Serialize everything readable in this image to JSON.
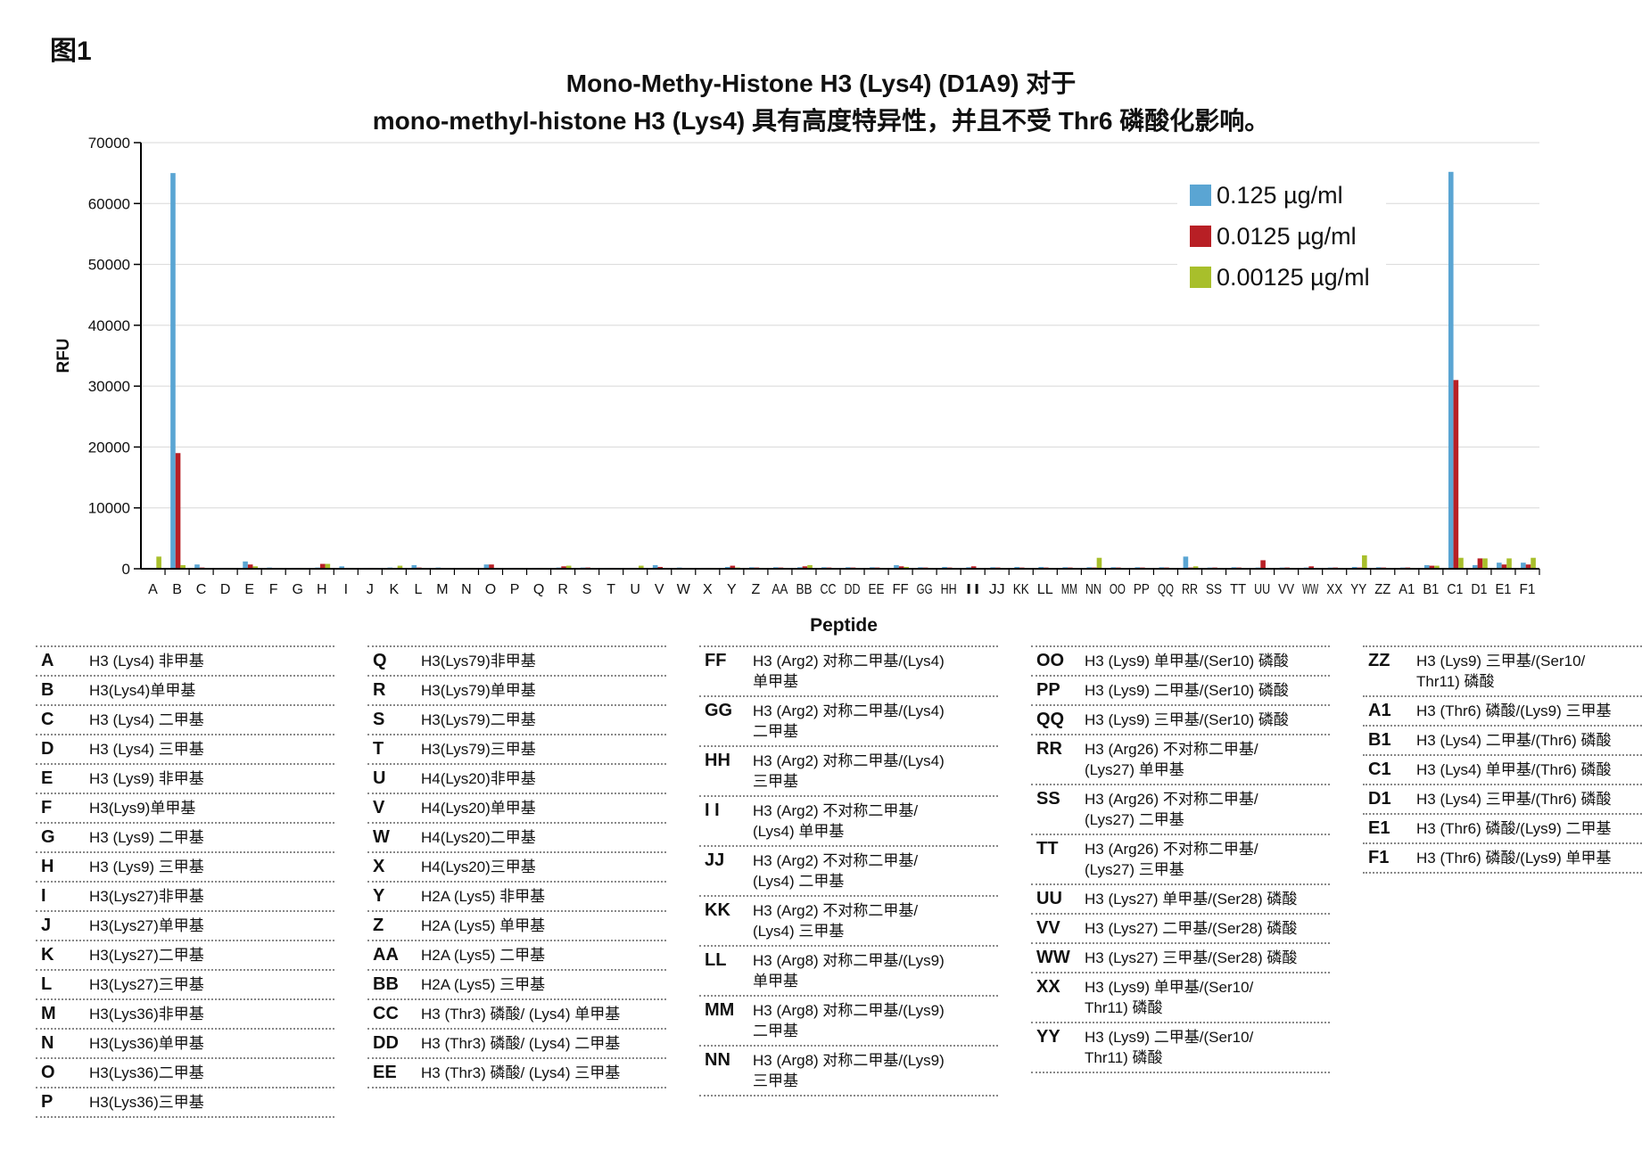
{
  "figure_label": "图1",
  "title_line1": "Mono-Methy-Histone H3 (Lys4) (D1A9) 对于",
  "title_line2": "mono-methyl-histone H3 (Lys4) 具有高度特异性，并且不受 Thr6 磷酸化影响。",
  "colors": {
    "s1": "#5aa5d3",
    "s2": "#b81f25",
    "s3": "#a8bf2b",
    "grid": "#d8d8d8",
    "axis": "#000000"
  },
  "chart_data": {
    "type": "bar",
    "xlabel": "Peptide",
    "ylabel": "RFU",
    "ylim": [
      0,
      70000
    ],
    "yticks": [
      "0",
      "10000",
      "20000",
      "30000",
      "40000",
      "50000",
      "60000",
      "70000"
    ],
    "grid": true,
    "legend_position": "top-right",
    "categories": [
      "A",
      "B",
      "C",
      "D",
      "E",
      "F",
      "G",
      "H",
      "I",
      "J",
      "K",
      "L",
      "M",
      "N",
      "O",
      "P",
      "Q",
      "R",
      "S",
      "T",
      "U",
      "V",
      "W",
      "X",
      "Y",
      "Z",
      "AA",
      "BB",
      "CC",
      "DD",
      "EE",
      "FF",
      "GG",
      "HH",
      "II",
      "JJ",
      "KK",
      "LL",
      "MM",
      "NN",
      "OO",
      "PP",
      "QQ",
      "RR",
      "SS",
      "TT",
      "UU",
      "VV",
      "WW",
      "XX",
      "YY",
      "ZZ",
      "A1",
      "B1",
      "C1",
      "D1",
      "E1",
      "F1"
    ],
    "series": [
      {
        "name": "0.125 µg/ml",
        "values": [
          100,
          65000,
          700,
          150,
          1200,
          200,
          150,
          200,
          400,
          150,
          200,
          600,
          200,
          150,
          700,
          150,
          150,
          200,
          200,
          150,
          150,
          600,
          200,
          150,
          300,
          250,
          250,
          250,
          250,
          250,
          250,
          600,
          250,
          300,
          250,
          250,
          300,
          300,
          250,
          250,
          250,
          250,
          250,
          2000,
          200,
          250,
          200,
          200,
          200,
          200,
          300,
          250,
          200,
          600,
          65200,
          600,
          1000,
          1000
        ]
      },
      {
        "name": "0.0125 µg/ml",
        "values": [
          100,
          19000,
          200,
          150,
          700,
          150,
          150,
          800,
          150,
          150,
          150,
          200,
          150,
          150,
          700,
          150,
          150,
          400,
          200,
          150,
          150,
          300,
          150,
          150,
          500,
          200,
          200,
          400,
          200,
          200,
          200,
          400,
          200,
          200,
          400,
          200,
          200,
          200,
          200,
          200,
          200,
          200,
          200,
          200,
          200,
          200,
          1400,
          200,
          400,
          200,
          200,
          200,
          200,
          500,
          31000,
          1700,
          700,
          700
        ]
      },
      {
        "name": "0.00125 µg/ml",
        "values": [
          2000,
          600,
          150,
          150,
          400,
          150,
          150,
          800,
          150,
          150,
          500,
          150,
          150,
          150,
          150,
          150,
          150,
          500,
          150,
          150,
          500,
          150,
          150,
          150,
          200,
          150,
          150,
          600,
          150,
          150,
          150,
          300,
          150,
          150,
          150,
          150,
          150,
          150,
          150,
          1800,
          150,
          150,
          150,
          400,
          150,
          150,
          150,
          150,
          150,
          150,
          2200,
          150,
          150,
          500,
          1800,
          1700,
          1700,
          1800
        ]
      }
    ]
  },
  "key_columns": [
    [
      {
        "code": "A",
        "desc": "H3 (Lys4) 非甲基"
      },
      {
        "code": "B",
        "desc": "H3(Lys4)单甲基"
      },
      {
        "code": "C",
        "desc": "H3 (Lys4) 二甲基"
      },
      {
        "code": "D",
        "desc": "H3 (Lys4) 三甲基"
      },
      {
        "code": "E",
        "desc": "H3 (Lys9) 非甲基"
      },
      {
        "code": "F",
        "desc": "H3(Lys9)单甲基"
      },
      {
        "code": "G",
        "desc": "H3 (Lys9) 二甲基"
      },
      {
        "code": "H",
        "desc": "H3 (Lys9) 三甲基"
      },
      {
        "code": "I",
        "desc": "H3(Lys27)非甲基"
      },
      {
        "code": "J",
        "desc": "H3(Lys27)单甲基"
      },
      {
        "code": "K",
        "desc": "H3(Lys27)二甲基"
      },
      {
        "code": "L",
        "desc": "H3(Lys27)三甲基"
      },
      {
        "code": "M",
        "desc": "H3(Lys36)非甲基"
      },
      {
        "code": "N",
        "desc": "H3(Lys36)单甲基"
      },
      {
        "code": "O",
        "desc": "H3(Lys36)二甲基"
      },
      {
        "code": "P",
        "desc": "H3(Lys36)三甲基"
      }
    ],
    [
      {
        "code": "Q",
        "desc": "H3(Lys79)非甲基"
      },
      {
        "code": "R",
        "desc": "H3(Lys79)单甲基"
      },
      {
        "code": "S",
        "desc": "H3(Lys79)二甲基"
      },
      {
        "code": "T",
        "desc": "H3(Lys79)三甲基"
      },
      {
        "code": "U",
        "desc": "H4(Lys20)非甲基"
      },
      {
        "code": "V",
        "desc": "H4(Lys20)单甲基"
      },
      {
        "code": "W",
        "desc": "H4(Lys20)二甲基"
      },
      {
        "code": "X",
        "desc": "H4(Lys20)三甲基"
      },
      {
        "code": "Y",
        "desc": "H2A (Lys5) 非甲基"
      },
      {
        "code": "Z",
        "desc": "H2A (Lys5) 单甲基"
      },
      {
        "code": "AA",
        "desc": "H2A (Lys5) 二甲基"
      },
      {
        "code": "BB",
        "desc": "H2A (Lys5) 三甲基"
      },
      {
        "code": "CC",
        "desc": "H3 (Thr3) 磷酸/ (Lys4) 单甲基"
      },
      {
        "code": "DD",
        "desc": "H3 (Thr3) 磷酸/ (Lys4) 二甲基"
      },
      {
        "code": "EE",
        "desc": "H3 (Thr3) 磷酸/ (Lys4) 三甲基"
      }
    ],
    [
      {
        "code": "FF",
        "desc": "H3 (Arg2) 对称二甲基/(Lys4)\n单甲基"
      },
      {
        "code": "GG",
        "desc": "H3 (Arg2) 对称二甲基/(Lys4)\n二甲基"
      },
      {
        "code": "HH",
        "desc": "H3 (Arg2) 对称二甲基/(Lys4)\n三甲基"
      },
      {
        "code": "I I",
        "desc": "H3 (Arg2) 不对称二甲基/\n(Lys4) 单甲基"
      },
      {
        "code": "JJ",
        "desc": "H3 (Arg2) 不对称二甲基/\n(Lys4) 二甲基"
      },
      {
        "code": "KK",
        "desc": "H3 (Arg2) 不对称二甲基/\n(Lys4) 三甲基"
      },
      {
        "code": "LL",
        "desc": "H3 (Arg8) 对称二甲基/(Lys9)\n单甲基"
      },
      {
        "code": "MM",
        "desc": "H3 (Arg8) 对称二甲基/(Lys9)\n二甲基"
      },
      {
        "code": "NN",
        "desc": "H3 (Arg8) 对称二甲基/(Lys9)\n三甲基"
      }
    ],
    [
      {
        "code": "OO",
        "desc": "H3 (Lys9) 单甲基/(Ser10) 磷酸"
      },
      {
        "code": "PP",
        "desc": "H3 (Lys9) 二甲基/(Ser10) 磷酸"
      },
      {
        "code": "QQ",
        "desc": "H3 (Lys9) 三甲基/(Ser10) 磷酸"
      },
      {
        "code": "RR",
        "desc": "H3 (Arg26) 不对称二甲基/\n(Lys27) 单甲基"
      },
      {
        "code": "SS",
        "desc": "H3 (Arg26) 不对称二甲基/\n(Lys27) 二甲基"
      },
      {
        "code": "TT",
        "desc": "H3 (Arg26) 不对称二甲基/\n(Lys27) 三甲基"
      },
      {
        "code": "UU",
        "desc": "H3 (Lys27) 单甲基/(Ser28) 磷酸"
      },
      {
        "code": "VV",
        "desc": "H3 (Lys27) 二甲基/(Ser28) 磷酸"
      },
      {
        "code": "WW",
        "desc": "H3 (Lys27) 三甲基/(Ser28) 磷酸"
      },
      {
        "code": "XX",
        "desc": "H3 (Lys9) 单甲基/(Ser10/\nThr11) 磷酸"
      },
      {
        "code": "YY",
        "desc": "H3 (Lys9) 二甲基/(Ser10/\nThr11) 磷酸"
      }
    ],
    [
      {
        "code": "ZZ",
        "desc": "H3 (Lys9) 三甲基/(Ser10/\nThr11) 磷酸"
      },
      {
        "code": "A1",
        "desc": "H3 (Thr6) 磷酸/(Lys9) 三甲基"
      },
      {
        "code": "B1",
        "desc": "H3 (Lys4) 二甲基/(Thr6) 磷酸"
      },
      {
        "code": "C1",
        "desc": "H3 (Lys4) 单甲基/(Thr6) 磷酸"
      },
      {
        "code": "D1",
        "desc": "H3 (Lys4) 三甲基/(Thr6) 磷酸"
      },
      {
        "code": "E1",
        "desc": "H3 (Thr6) 磷酸/(Lys9) 二甲基"
      },
      {
        "code": "F1",
        "desc": "H3 (Thr6) 磷酸/(Lys9) 单甲基"
      }
    ]
  ]
}
